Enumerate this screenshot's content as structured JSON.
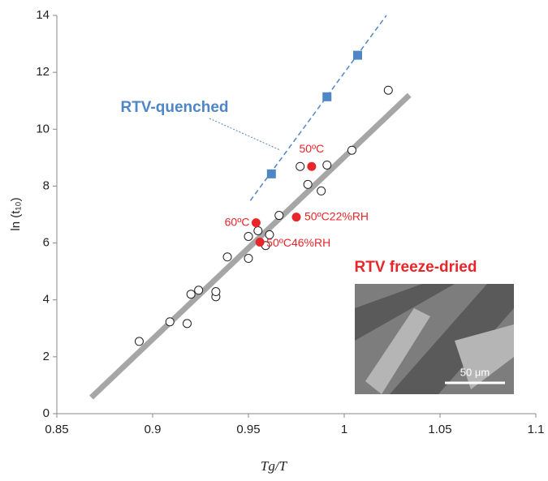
{
  "chart_data": {
    "type": "scatter",
    "xlabel": "Tg/T",
    "ylabel": "ln (t₁₀)",
    "xlim": [
      0.85,
      1.1
    ],
    "xticks": [
      0.85,
      0.9,
      0.95,
      1,
      1.05,
      1.1
    ],
    "ylim": [
      0,
      14
    ],
    "yticks": [
      0,
      2,
      4,
      6,
      8,
      10,
      12,
      14
    ],
    "series": [
      {
        "marker": "open-circle",
        "color": "#222222",
        "x": [
          0.893,
          0.909,
          0.918,
          0.92,
          0.924,
          0.933,
          0.933,
          0.939,
          0.95,
          0.95,
          0.955,
          0.959,
          0.961,
          0.966,
          0.977,
          0.981,
          0.988,
          0.991,
          1.004,
          1.023
        ],
        "values": [
          2.54,
          3.23,
          3.17,
          4.2,
          4.34,
          4.11,
          4.29,
          5.51,
          5.46,
          6.23,
          6.43,
          5.91,
          6.29,
          6.97,
          8.69,
          8.06,
          7.83,
          8.74,
          9.26,
          11.37
        ]
      },
      {
        "marker": "square",
        "color": "#4f86c6",
        "x": [
          0.962,
          0.991,
          1.007
        ],
        "values": [
          8.43,
          11.14,
          12.6
        ]
      },
      {
        "marker": "dot",
        "color": "#e8262a",
        "x": [
          0.983,
          0.954,
          0.975,
          0.956
        ],
        "values": [
          8.69,
          6.71,
          6.91,
          6.03
        ],
        "labels": [
          "50ºC",
          "60ºC",
          "50ºC22%RH",
          "50ºC46%RH"
        ]
      }
    ],
    "lines": [
      {
        "color": "#a6a6a6",
        "dashed": false,
        "x": [
          0.868,
          1.034
        ],
        "values": [
          0.57,
          11.2
        ]
      },
      {
        "color": "#4f86c6",
        "dashed": true,
        "x": [
          0.951,
          1.022
        ],
        "values": [
          7.49,
          14
        ]
      }
    ],
    "annotations": [
      "RTV-quenched",
      "RTV freeze-dried",
      "50 μm"
    ]
  }
}
